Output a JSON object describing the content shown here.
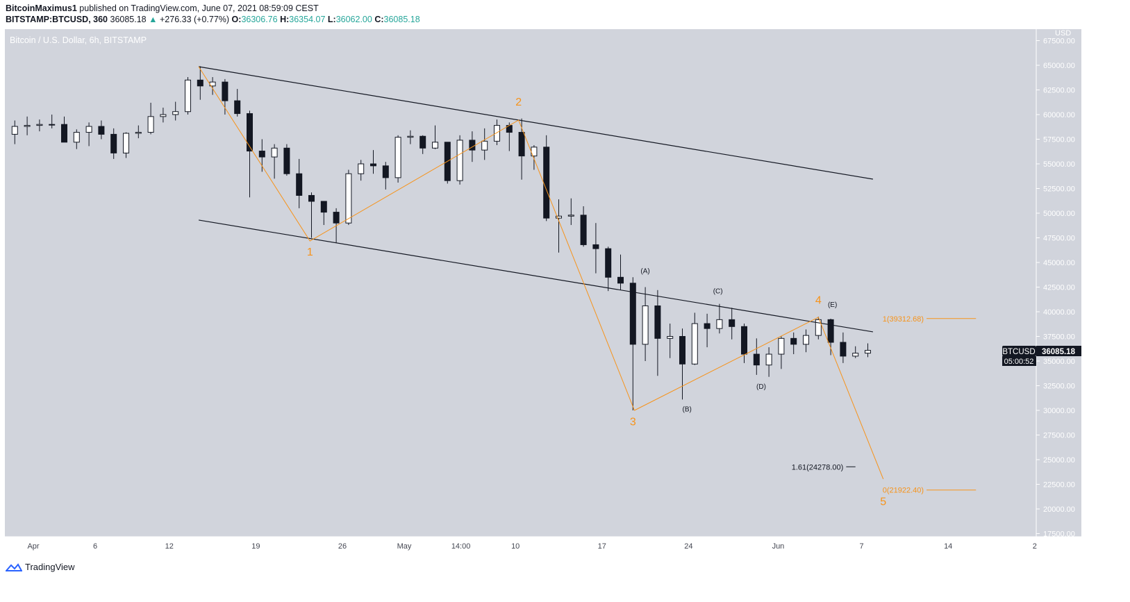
{
  "header": {
    "author": "BitcoinMaximus1",
    "published": "published on TradingView.com, June 07, 2021 08:59:09 CEST",
    "symbol": "BITSTAMP:BTCUSD, 360",
    "last": "36085.18",
    "change": "+276.33 (+0.77%)",
    "o_label": "O:",
    "o": "36306.76",
    "h_label": "H:",
    "h": "36354.07",
    "l_label": "L:",
    "l": "36062.00",
    "c_label": "C:",
    "c": "36085.18"
  },
  "footer": {
    "brand": "TradingView"
  },
  "colors": {
    "background": "#d1d4dc",
    "wave": "#f7931a",
    "channel": "#131722",
    "up": "#26a69a"
  },
  "chart_data": {
    "type": "candlestick",
    "title": "Bitcoin / U.S. Dollar, 6h, BITSTAMP",
    "currency": "USD",
    "ylim": [
      17000,
      68500
    ],
    "y_ticks": [
      "67500.00",
      "65000.00",
      "62500.00",
      "60000.00",
      "57500.00",
      "55000.00",
      "52500.00",
      "50000.00",
      "47500.00",
      "45000.00",
      "42500.00",
      "40000.00",
      "37500.00",
      "35000.00",
      "32500.00",
      "30000.00",
      "27500.00",
      "25000.00",
      "22500.00",
      "20000.00",
      "17500.00"
    ],
    "x_ticks": [
      {
        "label": "Apr",
        "date": "2021-04-01"
      },
      {
        "label": "6",
        "date": "2021-04-06"
      },
      {
        "label": "12",
        "date": "2021-04-12"
      },
      {
        "label": "19",
        "date": "2021-04-19"
      },
      {
        "label": "26",
        "date": "2021-04-26"
      },
      {
        "label": "May",
        "date": "2021-05-01"
      },
      {
        "label": "14:00",
        "date": "2021-05-05T14:00"
      },
      {
        "label": "10",
        "date": "2021-05-10"
      },
      {
        "label": "17",
        "date": "2021-05-17"
      },
      {
        "label": "24",
        "date": "2021-05-24"
      },
      {
        "label": "Jun",
        "date": "2021-05-31T06:00"
      },
      {
        "label": "7",
        "date": "2021-06-07"
      },
      {
        "label": "14",
        "date": "2021-06-14"
      },
      {
        "label": "2",
        "date": "2021-06-21"
      }
    ],
    "start_date": "2021-03-30",
    "ohlc": [
      [
        58000,
        59400,
        57000,
        58800
      ],
      [
        58800,
        59800,
        57900,
        58900
      ],
      [
        58900,
        59500,
        58300,
        59000
      ],
      [
        59000,
        60000,
        58600,
        59000
      ],
      [
        59000,
        59800,
        57200,
        57200
      ],
      [
        57200,
        58500,
        56500,
        58200
      ],
      [
        58200,
        59200,
        56800,
        58800
      ],
      [
        58800,
        59400,
        57500,
        58000
      ],
      [
        58000,
        58600,
        55500,
        56100
      ],
      [
        56100,
        58200,
        55600,
        58100
      ],
      [
        58100,
        58900,
        57600,
        58200
      ],
      [
        58200,
        61200,
        58000,
        59800
      ],
      [
        59800,
        60700,
        59200,
        60000
      ],
      [
        60000,
        61300,
        59400,
        60300
      ],
      [
        60300,
        63800,
        60000,
        63500
      ],
      [
        63500,
        64900,
        61500,
        62900
      ],
      [
        62900,
        63800,
        62000,
        63300
      ],
      [
        63300,
        63600,
        60000,
        61400
      ],
      [
        61400,
        62600,
        59800,
        60100
      ],
      [
        60100,
        60400,
        51600,
        56300
      ],
      [
        56300,
        57500,
        54200,
        55700
      ],
      [
        55700,
        57000,
        53500,
        56600
      ],
      [
        56600,
        57000,
        53800,
        54000
      ],
      [
        54000,
        55500,
        50500,
        51800
      ],
      [
        51800,
        52100,
        47500,
        51200
      ],
      [
        51200,
        51200,
        48800,
        50100
      ],
      [
        50100,
        50500,
        47000,
        49000
      ],
      [
        49000,
        54400,
        48800,
        54000
      ],
      [
        54000,
        55400,
        53300,
        55000
      ],
      [
        55000,
        56400,
        54000,
        54800
      ],
      [
        54800,
        55200,
        52400,
        53600
      ],
      [
        53600,
        57900,
        53100,
        57700
      ],
      [
        57700,
        58400,
        57000,
        57800
      ],
      [
        57800,
        57900,
        56000,
        56600
      ],
      [
        56600,
        58900,
        56500,
        57200
      ],
      [
        57200,
        57200,
        53000,
        53300
      ],
      [
        53300,
        57900,
        52900,
        57400
      ],
      [
        57400,
        58300,
        55200,
        56400
      ],
      [
        56400,
        58600,
        55400,
        57300
      ],
      [
        57300,
        59500,
        56900,
        58900
      ],
      [
        58900,
        59200,
        56300,
        58200
      ],
      [
        58200,
        59600,
        53400,
        55800
      ],
      [
        55800,
        56900,
        54400,
        56700
      ],
      [
        56700,
        57900,
        49200,
        49500
      ],
      [
        49500,
        51400,
        46000,
        49700
      ],
      [
        49700,
        51500,
        48800,
        49800
      ],
      [
        49800,
        50700,
        46600,
        46800
      ],
      [
        46800,
        49000,
        43900,
        46400
      ],
      [
        46400,
        46600,
        42100,
        43500
      ],
      [
        43500,
        45800,
        42200,
        42900
      ],
      [
        42900,
        43500,
        30000,
        36700
      ],
      [
        36700,
        42500,
        35000,
        40600
      ],
      [
        40600,
        42200,
        33500,
        37300
      ],
      [
        37300,
        38800,
        35300,
        37500
      ],
      [
        37500,
        38300,
        31100,
        34700
      ],
      [
        34700,
        39900,
        34600,
        38800
      ],
      [
        38800,
        39800,
        36400,
        38300
      ],
      [
        38300,
        40800,
        37800,
        39200
      ],
      [
        39200,
        40400,
        37200,
        38500
      ],
      [
        38500,
        38800,
        34800,
        35700
      ],
      [
        35700,
        37300,
        33600,
        34600
      ],
      [
        34600,
        36400,
        33400,
        35700
      ],
      [
        35700,
        37500,
        34200,
        37300
      ],
      [
        37300,
        37900,
        35700,
        36700
      ],
      [
        36700,
        38200,
        35900,
        37600
      ],
      [
        37600,
        39500,
        37200,
        39200
      ],
      [
        39200,
        39300,
        35600,
        36900
      ],
      [
        36900,
        37900,
        34800,
        35500
      ],
      [
        35500,
        36500,
        35300,
        35800
      ],
      [
        35800,
        36800,
        35400,
        36085.18
      ]
    ],
    "channel": [
      {
        "from": {
          "date": "2021-04-14T09:00",
          "price": 64860
        },
        "to": {
          "date": "2021-06-07T22:00",
          "price": 53450
        }
      },
      {
        "from": {
          "date": "2021-04-14T09:00",
          "price": 49300
        },
        "to": {
          "date": "2021-06-07T22:00",
          "price": 37960
        }
      }
    ],
    "wave_path": [
      {
        "date": "2021-04-14T09:00",
        "price": 64860
      },
      {
        "date": "2021-04-23T09:00",
        "price": 47180
      },
      {
        "date": "2021-05-10T06:00",
        "price": 59440
      },
      {
        "date": "2021-05-19T15:00",
        "price": 30000
      },
      {
        "date": "2021-06-03T12:00",
        "price": 39440
      },
      {
        "date": "2021-06-08T18:00",
        "price": 23030
      }
    ],
    "wave_labels": [
      {
        "text": "1",
        "date": "2021-04-23T09:00",
        "price": 45700
      },
      {
        "text": "2",
        "date": "2021-05-10T06:00",
        "price": 60900
      },
      {
        "text": "3",
        "date": "2021-05-19T12:00",
        "price": 28500
      },
      {
        "text": "4",
        "date": "2021-06-03T12:00",
        "price": 40800
      },
      {
        "text": "5",
        "date": "2021-06-08T18:00",
        "price": 21500
      }
    ],
    "sub_labels": [
      {
        "text": "(A)",
        "date": "2021-05-20T12:00",
        "price": 43900
      },
      {
        "text": "(B)",
        "date": "2021-05-23T21:00",
        "price": 29900
      },
      {
        "text": "(C)",
        "date": "2021-05-26T09:00",
        "price": 41850
      },
      {
        "text": "(D)",
        "date": "2021-05-29T21:00",
        "price": 32200
      },
      {
        "text": "(E)",
        "date": "2021-06-04T06:00",
        "price": 40500
      }
    ],
    "fib_levels": [
      {
        "text": "1(39312.68)",
        "price": 39312.68,
        "color": "#f7931a",
        "label_date": "2021-06-10T12:00",
        "line_from": "2021-06-12T06:00",
        "line_to": "2021-06-16T06:00"
      },
      {
        "text": "0(21922.40)",
        "price": 21922.4,
        "color": "#f7931a",
        "label_date": "2021-06-10T12:00",
        "line_from": "2021-06-12T06:00",
        "line_to": "2021-06-16T06:00"
      },
      {
        "text": "1.61(24278.00)",
        "price": 24278.0,
        "color": "#131722",
        "label_date": "2021-06-05T12:00",
        "line_from": "2021-06-05T18:00",
        "line_to": "2021-06-06T12:00"
      }
    ],
    "last_price": {
      "symbol": "BTCUSD",
      "price": "36085.18",
      "countdown": "05:00:52"
    }
  }
}
